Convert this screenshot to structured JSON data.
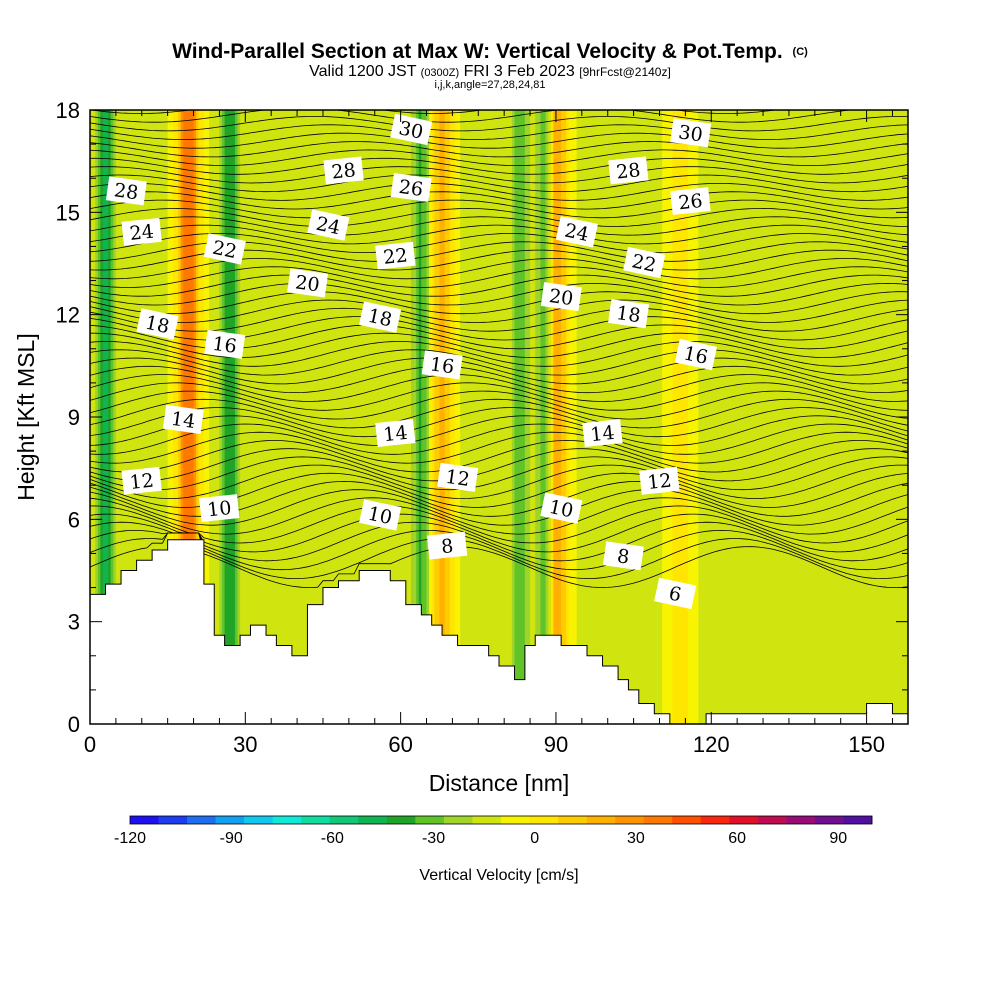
{
  "header": {
    "title": "Wind-Parallel Section at Max W: Vertical Velocity & Pot.Temp.",
    "title_mark": "(C)",
    "valid_prefix": "Valid 1200 JST",
    "valid_utc": "(0300Z)",
    "valid_date": "FRI 3 Feb 2023",
    "forecast_tag": "[9hrFcst@2140z]",
    "indices": "i,j,k,angle=27,28,24,81"
  },
  "chart_data": {
    "type": "heatmap",
    "title": "Wind-Parallel Section at Max W: Vertical Velocity & Pot.Temp.",
    "xlabel": "Distance [nm]",
    "ylabel": "Height [Kft MSL]",
    "xlim": [
      0,
      158
    ],
    "ylim": [
      0,
      18
    ],
    "x_ticks": [
      0,
      30,
      60,
      90,
      120,
      150
    ],
    "y_ticks": [
      0,
      3,
      6,
      9,
      12,
      15,
      18
    ],
    "colorbar": {
      "label": "Vertical Velocity [cm/s]",
      "range": [
        -120,
        100
      ],
      "step": 10,
      "tick_labels": [
        -120,
        -90,
        -60,
        -30,
        0,
        30,
        60,
        90
      ],
      "colors": [
        "#1e10f0",
        "#1e3cf0",
        "#1e6ef0",
        "#14a0f0",
        "#10c8f0",
        "#10e8d8",
        "#10dca0",
        "#10c878",
        "#10b450",
        "#20a428",
        "#60c428",
        "#a0d428",
        "#d0e410",
        "#f8f400",
        "#ffe600",
        "#ffcc00",
        "#ffb000",
        "#ff9400",
        "#ff7800",
        "#ff5000",
        "#f82810",
        "#e01028",
        "#c00c50",
        "#980c78",
        "#701090",
        "#5010a0"
      ]
    },
    "updraft_cores": [
      {
        "x": 19,
        "w": 60,
        "note": "core near x=19 nm"
      },
      {
        "x": 68,
        "w": 35
      },
      {
        "x": 90,
        "w": 45
      },
      {
        "x": 114,
        "w": 20
      }
    ],
    "downdraft_cores": [
      {
        "x": 3,
        "w": -45
      },
      {
        "x": 27,
        "w": -35
      },
      {
        "x": 64,
        "w": -30
      },
      {
        "x": 88,
        "w": -40
      },
      {
        "x": 83,
        "w": -25
      }
    ],
    "theta_contour_labels": [
      {
        "value": "28",
        "x": 7,
        "y": 15.6
      },
      {
        "value": "24",
        "x": 10,
        "y": 14.4
      },
      {
        "value": "18",
        "x": 13,
        "y": 11.7
      },
      {
        "value": "14",
        "x": 18,
        "y": 8.9
      },
      {
        "value": "12",
        "x": 10,
        "y": 7.1
      },
      {
        "value": "22",
        "x": 26,
        "y": 13.9
      },
      {
        "value": "16",
        "x": 26,
        "y": 11.1
      },
      {
        "value": "10",
        "x": 25,
        "y": 6.3
      },
      {
        "value": "24",
        "x": 46,
        "y": 14.6
      },
      {
        "value": "20",
        "x": 42,
        "y": 12.9
      },
      {
        "value": "28",
        "x": 49,
        "y": 16.2
      },
      {
        "value": "30",
        "x": 62,
        "y": 17.4
      },
      {
        "value": "26",
        "x": 62,
        "y": 15.7
      },
      {
        "value": "22",
        "x": 59,
        "y": 13.7
      },
      {
        "value": "18",
        "x": 56,
        "y": 11.9
      },
      {
        "value": "16",
        "x": 68,
        "y": 10.5
      },
      {
        "value": "14",
        "x": 59,
        "y": 8.5
      },
      {
        "value": "10",
        "x": 56,
        "y": 6.1
      },
      {
        "value": "12",
        "x": 71,
        "y": 7.2
      },
      {
        "value": "8",
        "x": 69,
        "y": 5.2
      },
      {
        "value": "24",
        "x": 94,
        "y": 14.4
      },
      {
        "value": "20",
        "x": 91,
        "y": 12.5
      },
      {
        "value": "28",
        "x": 104,
        "y": 16.2
      },
      {
        "value": "22",
        "x": 107,
        "y": 13.5
      },
      {
        "value": "18",
        "x": 104,
        "y": 12.0
      },
      {
        "value": "14",
        "x": 99,
        "y": 8.5
      },
      {
        "value": "10",
        "x": 91,
        "y": 6.3
      },
      {
        "value": "8",
        "x": 103,
        "y": 4.9
      },
      {
        "value": "12",
        "x": 110,
        "y": 7.1
      },
      {
        "value": "6",
        "x": 113,
        "y": 3.8
      },
      {
        "value": "30",
        "x": 116,
        "y": 17.3
      },
      {
        "value": "26",
        "x": 116,
        "y": 15.3
      },
      {
        "value": "16",
        "x": 117,
        "y": 10.8
      }
    ],
    "terrain": [
      [
        0,
        3.8
      ],
      [
        3,
        3.8
      ],
      [
        3,
        4.1
      ],
      [
        6,
        4.1
      ],
      [
        6,
        4.5
      ],
      [
        9,
        4.5
      ],
      [
        9,
        4.8
      ],
      [
        12,
        4.8
      ],
      [
        12,
        5.1
      ],
      [
        15,
        5.1
      ],
      [
        15,
        5.4
      ],
      [
        22,
        5.4
      ],
      [
        22,
        4.1
      ],
      [
        24,
        4.1
      ],
      [
        24,
        2.6
      ],
      [
        26,
        2.6
      ],
      [
        26,
        2.3
      ],
      [
        29,
        2.3
      ],
      [
        29,
        2.6
      ],
      [
        31,
        2.6
      ],
      [
        31,
        2.9
      ],
      [
        34,
        2.9
      ],
      [
        34,
        2.6
      ],
      [
        36,
        2.6
      ],
      [
        36,
        2.3
      ],
      [
        39,
        2.3
      ],
      [
        39,
        2.0
      ],
      [
        42,
        2.0
      ],
      [
        42,
        3.5
      ],
      [
        45,
        3.5
      ],
      [
        45,
        4.0
      ],
      [
        48,
        4.0
      ],
      [
        48,
        4.2
      ],
      [
        52,
        4.2
      ],
      [
        52,
        4.5
      ],
      [
        58,
        4.5
      ],
      [
        58,
        4.2
      ],
      [
        61,
        4.2
      ],
      [
        61,
        3.5
      ],
      [
        64,
        3.5
      ],
      [
        64,
        3.2
      ],
      [
        66,
        3.2
      ],
      [
        66,
        2.9
      ],
      [
        68,
        2.9
      ],
      [
        68,
        2.6
      ],
      [
        71,
        2.6
      ],
      [
        71,
        2.3
      ],
      [
        77,
        2.3
      ],
      [
        77,
        2.0
      ],
      [
        79,
        2.0
      ],
      [
        79,
        1.7
      ],
      [
        82,
        1.7
      ],
      [
        82,
        1.3
      ],
      [
        84,
        1.3
      ],
      [
        84,
        2.3
      ],
      [
        86,
        2.3
      ],
      [
        86,
        2.6
      ],
      [
        91,
        2.6
      ],
      [
        91,
        2.3
      ],
      [
        96,
        2.3
      ],
      [
        96,
        2.0
      ],
      [
        99,
        2.0
      ],
      [
        99,
        1.7
      ],
      [
        102,
        1.7
      ],
      [
        102,
        1.3
      ],
      [
        104,
        1.3
      ],
      [
        104,
        1.0
      ],
      [
        106,
        1.0
      ],
      [
        106,
        0.6
      ],
      [
        109,
        0.6
      ],
      [
        109,
        0.3
      ],
      [
        112,
        0.3
      ],
      [
        112,
        0.0
      ],
      [
        119,
        0.0
      ],
      [
        119,
        0.3
      ],
      [
        150,
        0.3
      ],
      [
        150,
        0.6
      ],
      [
        155,
        0.6
      ],
      [
        155,
        0.3
      ],
      [
        158,
        0.3
      ]
    ]
  }
}
